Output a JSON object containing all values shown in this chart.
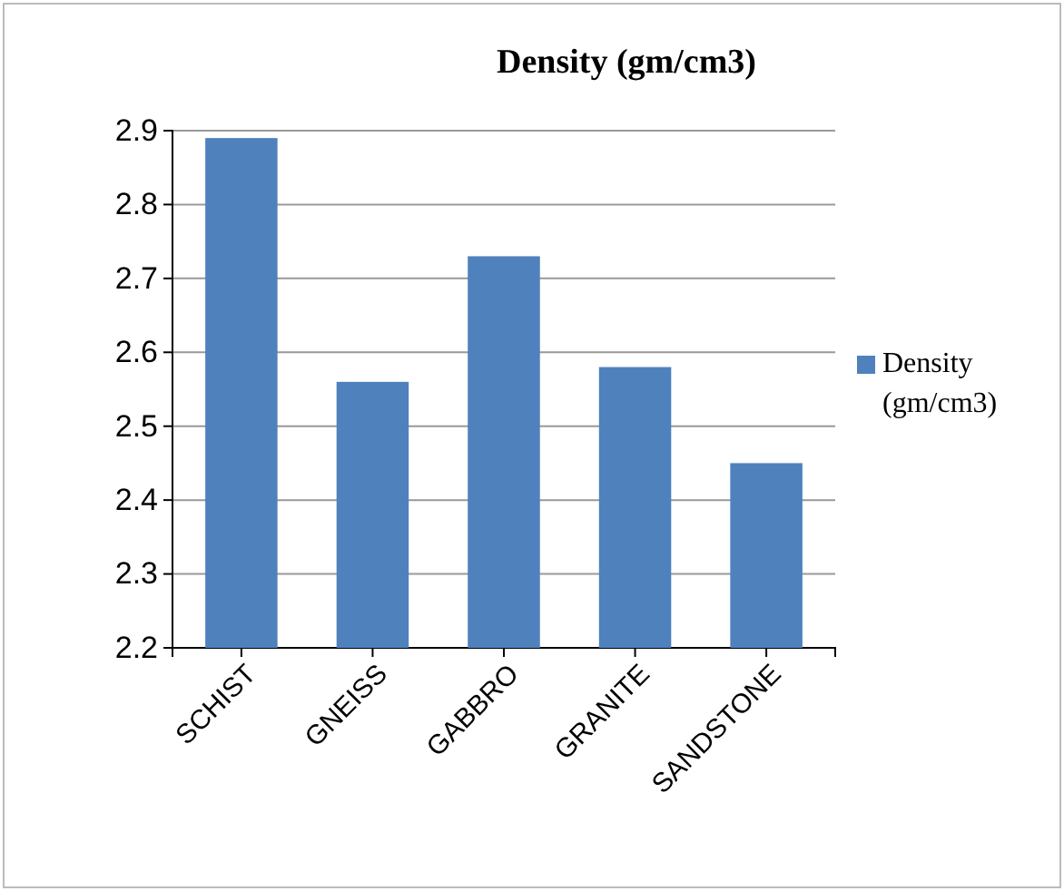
{
  "chart_data": {
    "type": "bar",
    "title": "Density (gm/cm3)",
    "categories": [
      "SCHIST",
      "GNEISS",
      "GABBRO",
      "GRANITE",
      "SANDSTONE"
    ],
    "series": [
      {
        "name": "Density (gm/cm3)",
        "color": "#4f81bd",
        "values": [
          2.89,
          2.56,
          2.73,
          2.58,
          2.45
        ]
      }
    ],
    "ylim": [
      2.2,
      2.9
    ],
    "yticks": [
      2.2,
      2.3,
      2.4,
      2.5,
      2.6,
      2.7,
      2.8,
      2.9
    ],
    "grid": "y",
    "legend": "right"
  }
}
